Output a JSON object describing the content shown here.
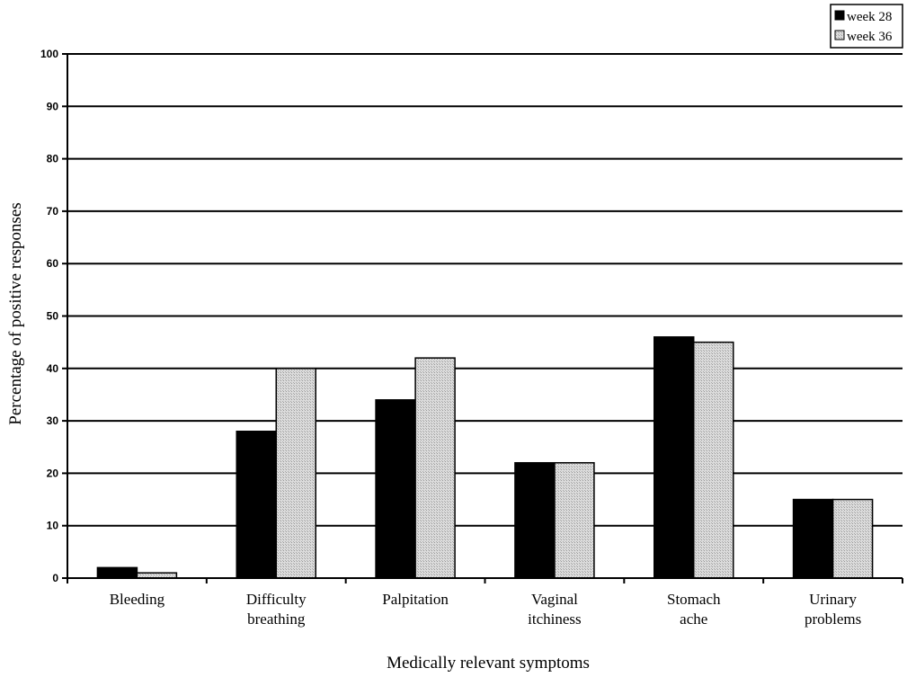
{
  "chart_data": {
    "type": "bar",
    "categories": [
      [
        "Bleeding"
      ],
      [
        "Difficulty",
        "breathing"
      ],
      [
        "Palpitation"
      ],
      [
        "Vaginal",
        "itchiness"
      ],
      [
        "Stomach",
        "ache"
      ],
      [
        "Urinary",
        "problems"
      ]
    ],
    "series": [
      {
        "name": "week 28",
        "color": "#000000",
        "values": [
          2,
          28,
          34,
          22,
          46,
          15
        ]
      },
      {
        "name": "week 36",
        "color": "#d4d4d4",
        "values": [
          1,
          40,
          42,
          22,
          45,
          15
        ]
      }
    ],
    "xlabel": "Medically relevant symptoms",
    "ylabel": "Percentage of positive responses",
    "ylim": [
      0,
      100
    ],
    "yticks": [
      0,
      10,
      20,
      30,
      40,
      50,
      60,
      70,
      80,
      90,
      100
    ],
    "grid": true,
    "legend_position": "top-right"
  }
}
